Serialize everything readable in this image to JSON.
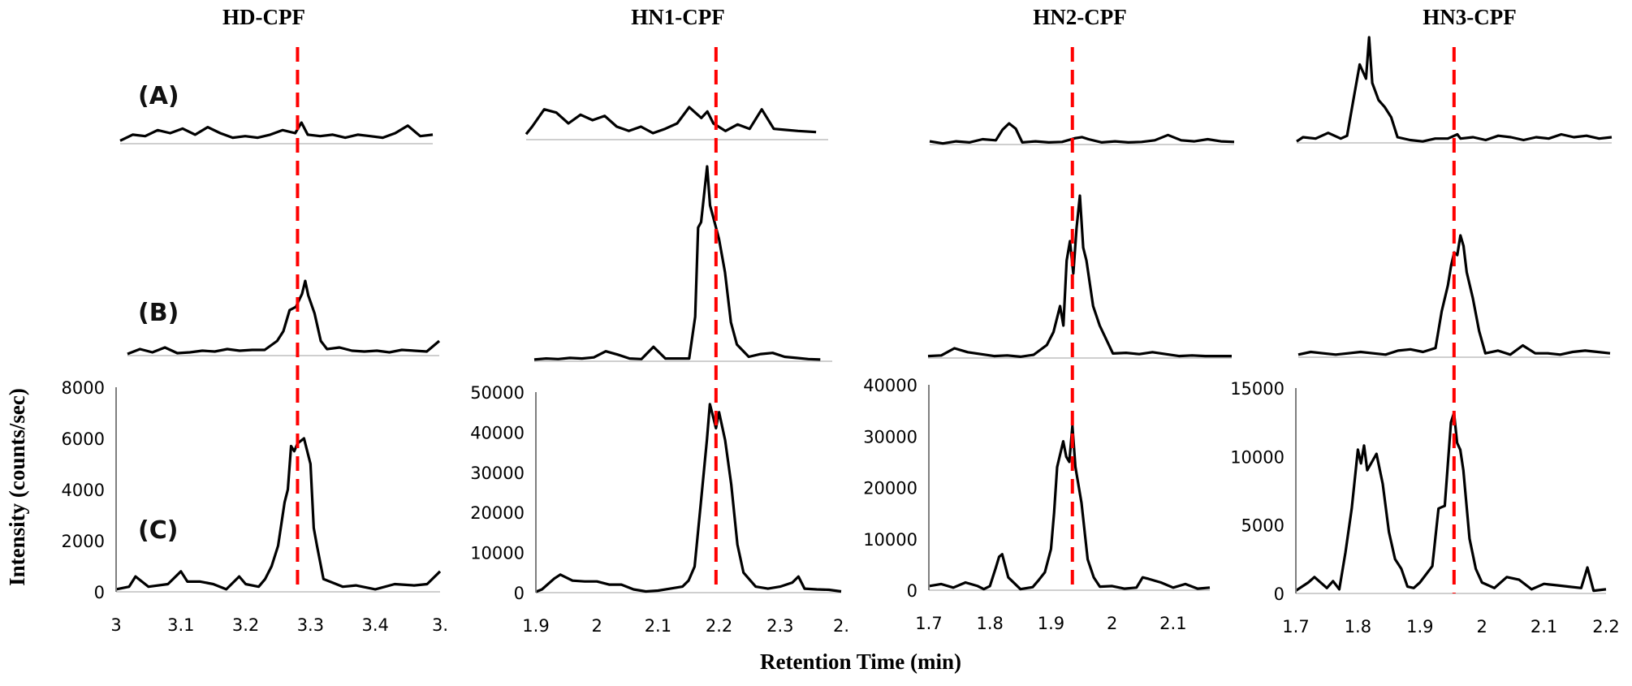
{
  "figure": {
    "ylabel": "Intensity (counts/sec)",
    "xlabel": "Retention Time (min)",
    "row_labels": [
      "(A)",
      "(B)",
      "(C)"
    ],
    "marker_color": "#ff0000",
    "trace_color": "#000000"
  },
  "chart_data": [
    {
      "type": "line",
      "title": "HD-CPF",
      "xlabel": "Retention Time (min)",
      "ylabel": "Intensity (counts/sec)",
      "xlim": [
        3.0,
        3.5
      ],
      "ylim": [
        0,
        8000
      ],
      "xticks": [
        "3",
        "3.1",
        "3.2",
        "3.3",
        "3.4",
        "3."
      ],
      "yticks": [
        "0",
        "2000",
        "4000",
        "6000",
        "8000"
      ],
      "marker_rt": 3.28,
      "series": [
        {
          "name": "(A)",
          "x": [
            3.0,
            3.02,
            3.04,
            3.06,
            3.08,
            3.1,
            3.12,
            3.14,
            3.16,
            3.18,
            3.2,
            3.22,
            3.24,
            3.26,
            3.28,
            3.29,
            3.3,
            3.32,
            3.34,
            3.36,
            3.38,
            3.4,
            3.42,
            3.44,
            3.46,
            3.48,
            3.5
          ],
          "y": [
            100,
            300,
            250,
            450,
            350,
            500,
            300,
            550,
            350,
            200,
            250,
            200,
            300,
            450,
            350,
            700,
            300,
            250,
            300,
            200,
            300,
            250,
            200,
            350,
            600,
            250,
            300
          ]
        },
        {
          "name": "(B)",
          "x": [
            3.0,
            3.02,
            3.04,
            3.06,
            3.08,
            3.1,
            3.12,
            3.14,
            3.16,
            3.18,
            3.2,
            3.22,
            3.24,
            3.25,
            3.26,
            3.27,
            3.28,
            3.285,
            3.29,
            3.3,
            3.31,
            3.32,
            3.34,
            3.36,
            3.38,
            3.4,
            3.42,
            3.44,
            3.46,
            3.48,
            3.5
          ],
          "y": [
            100,
            400,
            200,
            500,
            150,
            200,
            300,
            250,
            400,
            300,
            350,
            350,
            900,
            1500,
            2800,
            3000,
            3800,
            4600,
            3700,
            2600,
            900,
            400,
            500,
            300,
            250,
            300,
            200,
            350,
            300,
            250,
            900
          ]
        },
        {
          "name": "(C)",
          "x": [
            3.0,
            3.02,
            3.03,
            3.05,
            3.08,
            3.1,
            3.11,
            3.13,
            3.15,
            3.17,
            3.19,
            3.2,
            3.22,
            3.23,
            3.24,
            3.25,
            3.26,
            3.265,
            3.27,
            3.275,
            3.28,
            3.29,
            3.3,
            3.305,
            3.31,
            3.32,
            3.33,
            3.35,
            3.37,
            3.4,
            3.43,
            3.46,
            3.48,
            3.5
          ],
          "y": [
            100,
            200,
            600,
            200,
            300,
            800,
            400,
            400,
            300,
            100,
            600,
            300,
            200,
            500,
            1000,
            1800,
            3500,
            4000,
            5700,
            5500,
            5800,
            6000,
            5000,
            2500,
            1800,
            500,
            400,
            200,
            250,
            100,
            300,
            250,
            300,
            800
          ]
        }
      ]
    },
    {
      "type": "line",
      "title": "HN1-CPF",
      "xlabel": "Retention Time (min)",
      "ylabel": "Intensity (counts/sec)",
      "xlim": [
        1.9,
        2.4
      ],
      "ylim": [
        0,
        50000
      ],
      "xticks": [
        "1.9",
        "2",
        "2.1",
        "2.2",
        "2.3",
        "2."
      ],
      "yticks": [
        "0",
        "10000",
        "20000",
        "30000",
        "40000",
        "50000"
      ],
      "marker_rt": 2.195,
      "series": [
        {
          "name": "(A)",
          "x": [
            1.9,
            1.91,
            1.93,
            1.95,
            1.97,
            1.99,
            2.01,
            2.03,
            2.05,
            2.07,
            2.09,
            2.11,
            2.13,
            2.15,
            2.17,
            2.18,
            2.19,
            2.2,
            2.21,
            2.23,
            2.25,
            2.27,
            2.29,
            2.31,
            2.33,
            2.35,
            2.38
          ],
          "y": [
            500,
            1200,
            2800,
            2500,
            1500,
            2300,
            1800,
            2200,
            1200,
            800,
            1200,
            600,
            1000,
            1500,
            3000,
            2500,
            2000,
            2600,
            1500,
            800,
            1400,
            1000,
            2800,
            1000,
            900,
            800,
            700
          ]
        },
        {
          "name": "(B)",
          "x": [
            1.9,
            1.92,
            1.94,
            1.96,
            1.98,
            2.0,
            2.02,
            2.04,
            2.06,
            2.08,
            2.1,
            2.12,
            2.14,
            2.16,
            2.17,
            2.175,
            2.18,
            2.19,
            2.195,
            2.2,
            2.21,
            2.22,
            2.23,
            2.24,
            2.26,
            2.28,
            2.3,
            2.32,
            2.34,
            2.36,
            2.38
          ],
          "y": [
            300,
            500,
            400,
            600,
            500,
            700,
            1800,
            1200,
            500,
            400,
            2600,
            500,
            500,
            500,
            8000,
            24000,
            25000,
            35000,
            28000,
            26000,
            22000,
            16000,
            7000,
            3000,
            800,
            1300,
            1500,
            800,
            600,
            400,
            300
          ]
        },
        {
          "name": "(C)",
          "x": [
            1.9,
            1.91,
            1.93,
            1.94,
            1.96,
            1.98,
            2.0,
            2.02,
            2.04,
            2.06,
            2.08,
            2.1,
            2.12,
            2.14,
            2.15,
            2.16,
            2.17,
            2.18,
            2.185,
            2.19,
            2.195,
            2.2,
            2.21,
            2.22,
            2.23,
            2.24,
            2.26,
            2.28,
            2.3,
            2.32,
            2.33,
            2.34,
            2.36,
            2.38,
            2.4
          ],
          "y": [
            200,
            800,
            3500,
            4500,
            3000,
            2800,
            2800,
            2000,
            2000,
            800,
            300,
            500,
            1000,
            1500,
            3000,
            6500,
            22000,
            38000,
            47000,
            44000,
            41000,
            45000,
            38000,
            27000,
            12000,
            5000,
            1500,
            1000,
            1500,
            2500,
            4000,
            1000,
            800,
            700,
            300
          ]
        }
      ]
    },
    {
      "type": "line",
      "title": "HN2-CPF",
      "xlabel": "Retention Time (min)",
      "ylabel": "Intensity (counts/sec)",
      "xlim": [
        1.7,
        2.16
      ],
      "ylim": [
        0,
        40000
      ],
      "xticks": [
        "1.7",
        "1.8",
        "1.9",
        "2",
        "2.1"
      ],
      "yticks": [
        "0",
        "10000",
        "20000",
        "30000",
        "40000"
      ],
      "marker_rt": 1.935,
      "series": [
        {
          "name": "(A)",
          "x": [
            1.7,
            1.72,
            1.74,
            1.76,
            1.78,
            1.8,
            1.81,
            1.82,
            1.83,
            1.84,
            1.86,
            1.88,
            1.9,
            1.92,
            1.93,
            1.94,
            1.96,
            1.98,
            2.0,
            2.02,
            2.04,
            2.06,
            2.08,
            2.1,
            2.12,
            2.14,
            2.16
          ],
          "y": [
            300,
            100,
            300,
            200,
            500,
            400,
            1400,
            2000,
            1500,
            200,
            300,
            200,
            250,
            600,
            700,
            500,
            200,
            300,
            200,
            250,
            400,
            900,
            400,
            300,
            500,
            300,
            250
          ]
        },
        {
          "name": "(B)",
          "x": [
            1.7,
            1.72,
            1.74,
            1.76,
            1.78,
            1.8,
            1.82,
            1.84,
            1.86,
            1.88,
            1.89,
            1.9,
            1.905,
            1.91,
            1.915,
            1.92,
            1.925,
            1.93,
            1.935,
            1.94,
            1.95,
            1.96,
            1.98,
            2.0,
            2.02,
            2.04,
            2.06,
            2.08,
            2.1,
            2.12,
            2.16
          ],
          "y": [
            300,
            400,
            1500,
            900,
            600,
            300,
            400,
            200,
            500,
            2000,
            4000,
            8000,
            5000,
            15000,
            18000,
            13000,
            20000,
            25000,
            17000,
            15000,
            8000,
            5000,
            700,
            800,
            600,
            900,
            600,
            300,
            400,
            300,
            300
          ]
        },
        {
          "name": "(C)",
          "x": [
            1.7,
            1.72,
            1.74,
            1.76,
            1.78,
            1.79,
            1.8,
            1.81,
            1.815,
            1.82,
            1.83,
            1.85,
            1.87,
            1.88,
            1.89,
            1.9,
            1.905,
            1.91,
            1.92,
            1.925,
            1.93,
            1.935,
            1.94,
            1.95,
            1.96,
            1.97,
            1.98,
            2.0,
            2.02,
            2.04,
            2.05,
            2.06,
            2.08,
            2.1,
            2.12,
            2.14,
            2.16
          ],
          "y": [
            800,
            1200,
            500,
            1500,
            800,
            200,
            800,
            4500,
            6500,
            7000,
            2500,
            200,
            600,
            2000,
            3500,
            8000,
            15000,
            24000,
            29000,
            26000,
            25000,
            32000,
            24000,
            17000,
            6000,
            2500,
            700,
            800,
            300,
            500,
            2500,
            2200,
            1500,
            500,
            1200,
            300,
            500
          ]
        }
      ]
    },
    {
      "type": "line",
      "title": "HN3-CPF",
      "xlabel": "Retention Time (min)",
      "ylabel": "Intensity (counts/sec)",
      "xlim": [
        1.7,
        2.2
      ],
      "ylim": [
        0,
        15000
      ],
      "xticks": [
        "1.7",
        "1.8",
        "1.9",
        "2",
        "2.1",
        "2.2"
      ],
      "yticks": [
        "0",
        "5000",
        "10000",
        "15000"
      ],
      "marker_rt": 1.955,
      "series": [
        {
          "name": "(A)",
          "x": [
            1.7,
            1.71,
            1.73,
            1.75,
            1.77,
            1.78,
            1.79,
            1.8,
            1.81,
            1.815,
            1.82,
            1.83,
            1.84,
            1.85,
            1.86,
            1.88,
            1.9,
            1.92,
            1.94,
            1.955,
            1.96,
            1.98,
            2.0,
            2.02,
            2.04,
            2.06,
            2.08,
            2.1,
            2.12,
            2.14,
            2.16,
            2.18,
            2.2
          ],
          "y": [
            100,
            400,
            300,
            700,
            300,
            500,
            3000,
            5500,
            4500,
            7400,
            4200,
            3000,
            2500,
            1800,
            400,
            200,
            100,
            300,
            300,
            600,
            300,
            400,
            200,
            500,
            400,
            200,
            400,
            300,
            600,
            400,
            500,
            300,
            400
          ]
        },
        {
          "name": "(B)",
          "x": [
            1.7,
            1.72,
            1.74,
            1.76,
            1.78,
            1.8,
            1.82,
            1.84,
            1.86,
            1.88,
            1.9,
            1.92,
            1.93,
            1.94,
            1.945,
            1.95,
            1.955,
            1.96,
            1.965,
            1.97,
            1.98,
            1.99,
            2.0,
            2.02,
            2.04,
            2.06,
            2.08,
            2.1,
            2.12,
            2.14,
            2.16,
            2.18,
            2.2
          ],
          "y": [
            200,
            400,
            300,
            200,
            300,
            400,
            300,
            200,
            500,
            600,
            400,
            700,
            3500,
            5500,
            7000,
            8000,
            7800,
            9300,
            8500,
            6500,
            4500,
            2000,
            300,
            500,
            200,
            900,
            300,
            300,
            200,
            400,
            500,
            400,
            300
          ]
        },
        {
          "name": "(C)",
          "x": [
            1.7,
            1.72,
            1.73,
            1.75,
            1.76,
            1.77,
            1.78,
            1.79,
            1.8,
            1.805,
            1.81,
            1.815,
            1.82,
            1.83,
            1.84,
            1.85,
            1.86,
            1.87,
            1.88,
            1.89,
            1.9,
            1.92,
            1.93,
            1.935,
            1.94,
            1.95,
            1.955,
            1.96,
            1.965,
            1.97,
            1.98,
            1.99,
            2.0,
            2.02,
            2.04,
            2.06,
            2.08,
            2.1,
            2.12,
            2.14,
            2.16,
            2.17,
            2.18,
            2.2
          ],
          "y": [
            200,
            800,
            1200,
            400,
            900,
            300,
            3000,
            6200,
            10500,
            9500,
            10800,
            9000,
            9400,
            10200,
            8000,
            4500,
            2500,
            1800,
            500,
            400,
            800,
            2000,
            6200,
            6300,
            6400,
            12500,
            13200,
            11000,
            10500,
            9000,
            4000,
            1800,
            800,
            400,
            1200,
            1000,
            300,
            700,
            600,
            500,
            400,
            1900,
            200,
            300
          ]
        }
      ]
    }
  ]
}
